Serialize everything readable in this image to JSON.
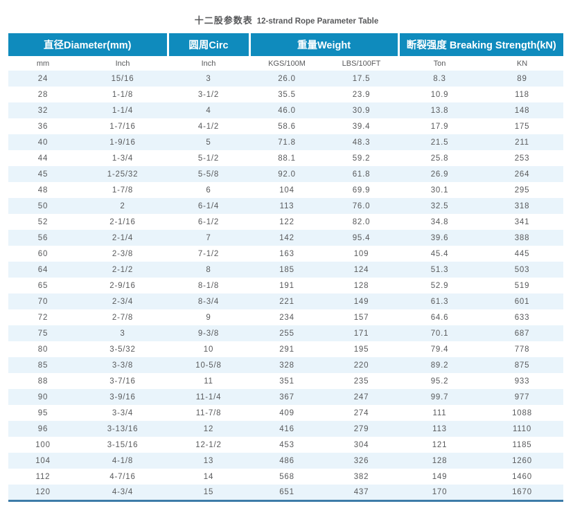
{
  "title": {
    "zh": "十二股参数表",
    "en": "12-strand Rope Parameter Table"
  },
  "table": {
    "groups": [
      {
        "label": "直径Diameter(mm)",
        "span": 2
      },
      {
        "label": "圆周Circ",
        "span": 1
      },
      {
        "label": "重量Weight",
        "span": 2
      },
      {
        "label": "断裂强度 Breaking Strength(kN)",
        "span": 2
      }
    ],
    "columns": [
      "mm",
      "Inch",
      "Inch",
      "KGS/100M",
      "LBS/100FT",
      "Ton",
      "KN"
    ],
    "rows": [
      [
        "24",
        "15/16",
        "3",
        "26.0",
        "17.5",
        "8.3",
        "89"
      ],
      [
        "28",
        "1-1/8",
        "3-1/2",
        "35.5",
        "23.9",
        "10.9",
        "118"
      ],
      [
        "32",
        "1-1/4",
        "4",
        "46.0",
        "30.9",
        "13.8",
        "148"
      ],
      [
        "36",
        "1-7/16",
        "4-1/2",
        "58.6",
        "39.4",
        "17.9",
        "175"
      ],
      [
        "40",
        "1-9/16",
        "5",
        "71.8",
        "48.3",
        "21.5",
        "211"
      ],
      [
        "44",
        "1-3/4",
        "5-1/2",
        "88.1",
        "59.2",
        "25.8",
        "253"
      ],
      [
        "45",
        "1-25/32",
        "5-5/8",
        "92.0",
        "61.8",
        "26.9",
        "264"
      ],
      [
        "48",
        "1-7/8",
        "6",
        "104",
        "69.9",
        "30.1",
        "295"
      ],
      [
        "50",
        "2",
        "6-1/4",
        "113",
        "76.0",
        "32.5",
        "318"
      ],
      [
        "52",
        "2-1/16",
        "6-1/2",
        "122",
        "82.0",
        "34.8",
        "341"
      ],
      [
        "56",
        "2-1/4",
        "7",
        "142",
        "95.4",
        "39.6",
        "388"
      ],
      [
        "60",
        "2-3/8",
        "7-1/2",
        "163",
        "109",
        "45.4",
        "445"
      ],
      [
        "64",
        "2-1/2",
        "8",
        "185",
        "124",
        "51.3",
        "503"
      ],
      [
        "65",
        "2-9/16",
        "8-1/8",
        "191",
        "128",
        "52.9",
        "519"
      ],
      [
        "70",
        "2-3/4",
        "8-3/4",
        "221",
        "149",
        "61.3",
        "601"
      ],
      [
        "72",
        "2-7/8",
        "9",
        "234",
        "157",
        "64.6",
        "633"
      ],
      [
        "75",
        "3",
        "9-3/8",
        "255",
        "171",
        "70.1",
        "687"
      ],
      [
        "80",
        "3-5/32",
        "10",
        "291",
        "195",
        "79.4",
        "778"
      ],
      [
        "85",
        "3-3/8",
        "10-5/8",
        "328",
        "220",
        "89.2",
        "875"
      ],
      [
        "88",
        "3-7/16",
        "11",
        "351",
        "235",
        "95.2",
        "933"
      ],
      [
        "90",
        "3-9/16",
        "11-1/4",
        "367",
        "247",
        "99.7",
        "977"
      ],
      [
        "95",
        "3-3/4",
        "11-7/8",
        "409",
        "274",
        "111",
        "1088"
      ],
      [
        "96",
        "3-13/16",
        "12",
        "416",
        "279",
        "113",
        "1110"
      ],
      [
        "100",
        "3-15/16",
        "12-1/2",
        "453",
        "304",
        "121",
        "1185"
      ],
      [
        "104",
        "4-1/8",
        "13",
        "486",
        "326",
        "128",
        "1260"
      ],
      [
        "112",
        "4-7/16",
        "14",
        "568",
        "382",
        "149",
        "1460"
      ],
      [
        "120",
        "4-3/4",
        "15",
        "651",
        "437",
        "170",
        "1670"
      ]
    ]
  },
  "colors": {
    "header_bg": "#0f8bbd",
    "row_alt": "#e9f4fb",
    "text": "#58595b",
    "bottom_border": "#3d7ba8"
  }
}
